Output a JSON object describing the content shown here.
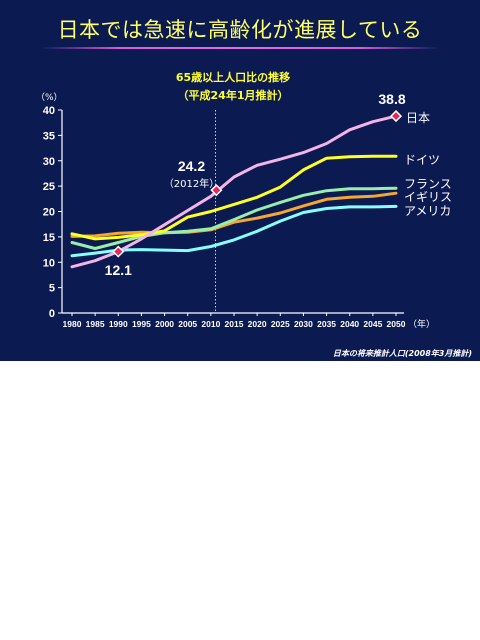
{
  "title": "日本では急速に高齢化が進展している",
  "source": "日本の将来推計人口(2008年3月推計)",
  "chart_data": {
    "type": "line",
    "title": "65歳以上人口比の推移",
    "subtitle": "（平成24年1月推計）",
    "ylabel": "（%）",
    "xlabel": "（年）",
    "ylim": [
      0,
      40
    ],
    "yticks": [
      "0",
      "5",
      "10",
      "15",
      "20",
      "25",
      "30",
      "35",
      "40"
    ],
    "x": [
      1980,
      1985,
      1990,
      1995,
      2000,
      2005,
      2010,
      2015,
      2020,
      2025,
      2030,
      2035,
      2040,
      2045,
      2050
    ],
    "xticks": [
      "1980",
      "1985",
      "1990",
      "1995",
      "2000",
      "2005",
      "2010",
      "2015",
      "2020",
      "2025",
      "2030",
      "2035",
      "2040",
      "2045",
      "2050"
    ],
    "grid": false,
    "reference_line_x": 2011,
    "series": [
      {
        "name": "日本",
        "color": "#f5b4e8",
        "values": [
          9.1,
          10.3,
          12.1,
          14.6,
          17.4,
          20.2,
          23.0,
          26.8,
          29.1,
          30.3,
          31.6,
          33.4,
          36.1,
          37.7,
          38.8
        ]
      },
      {
        "name": "ドイツ",
        "color": "#ffff22",
        "values": [
          15.6,
          14.6,
          14.9,
          15.4,
          16.2,
          18.9,
          20.0,
          21.4,
          22.8,
          24.8,
          28.2,
          30.5,
          30.8,
          30.9,
          30.9
        ]
      },
      {
        "name": "フランス",
        "color": "#99eeaa",
        "values": [
          13.9,
          12.7,
          13.9,
          15.1,
          15.8,
          16.1,
          16.6,
          18.4,
          20.3,
          21.8,
          23.2,
          24.1,
          24.5,
          24.5,
          24.6
        ]
      },
      {
        "name": "イギリス",
        "color": "#f5a830",
        "values": [
          15.1,
          15.2,
          15.7,
          15.9,
          15.8,
          15.9,
          16.4,
          17.9,
          18.7,
          19.7,
          21.1,
          22.4,
          22.8,
          23.0,
          23.6
        ]
      },
      {
        "name": "アメリカ",
        "color": "#88ffff",
        "values": [
          11.3,
          11.8,
          12.4,
          12.5,
          12.4,
          12.3,
          13.1,
          14.4,
          16.1,
          18.1,
          19.8,
          20.6,
          20.9,
          20.9,
          21.0
        ]
      }
    ],
    "annotations": [
      {
        "text": "12.1",
        "x": 1990,
        "y": 12.1
      },
      {
        "text": "24.2",
        "x": 2012,
        "y": 24.2
      },
      {
        "text": "（2012年）",
        "x": 2012,
        "y": 24.2
      },
      {
        "text": "38.8",
        "x": 2050,
        "y": 38.8
      }
    ]
  }
}
